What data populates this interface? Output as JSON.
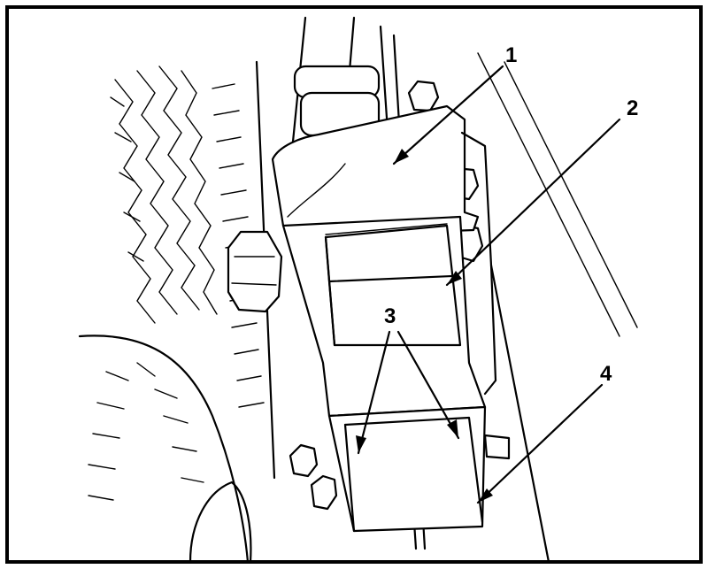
{
  "callouts": {
    "c1": "1",
    "c2": "2",
    "c3": "3",
    "c4": "4"
  }
}
